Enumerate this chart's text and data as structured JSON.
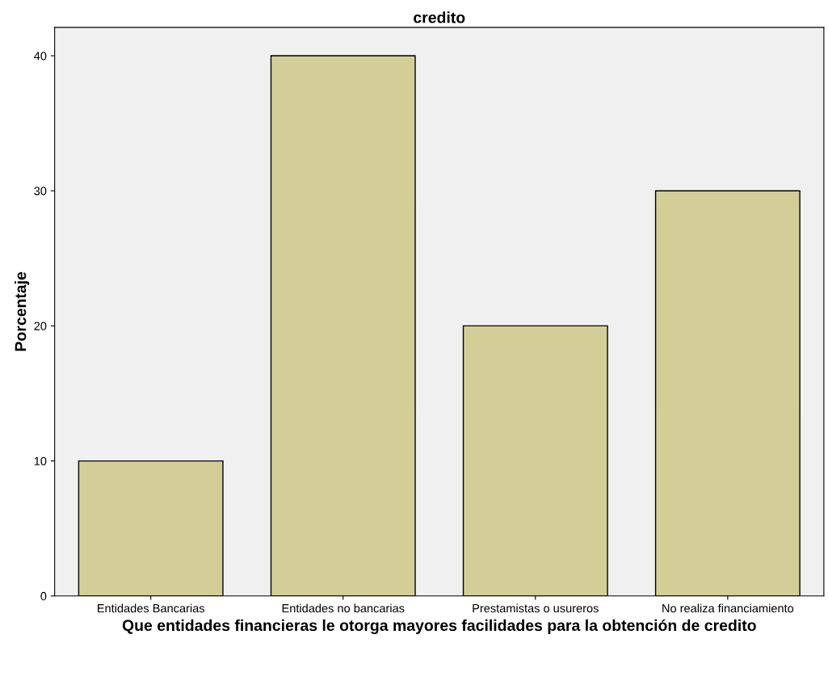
{
  "chart_data": {
    "type": "bar",
    "title": "credito",
    "xlabel": "Que entidades financieras le otorga mayores facilidades para la obtención de credito",
    "ylabel": "Porcentaje",
    "categories": [
      "Entidades Bancarias",
      "Entidades no bancarias",
      "Prestamistas o usureros",
      "No realiza financiamiento"
    ],
    "values": [
      10,
      40,
      20,
      30
    ],
    "color": "#d3ce97",
    "ylim": [
      0,
      42.1
    ],
    "yticks": [
      0,
      10,
      20,
      30,
      40
    ],
    "grid": false,
    "legend": false
  }
}
